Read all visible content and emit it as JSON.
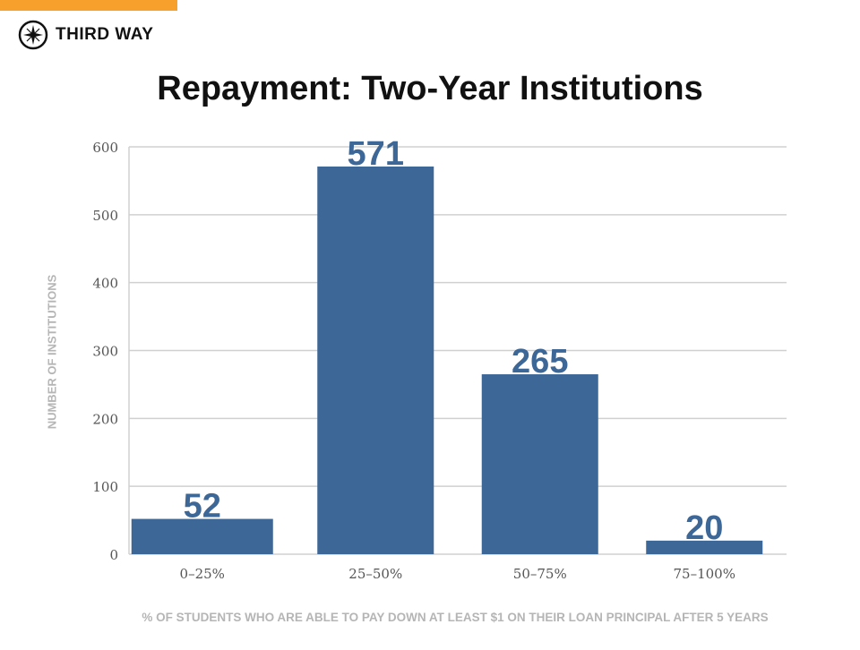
{
  "brand": {
    "name": "THIRD WAY",
    "accent": "#f7a12c"
  },
  "chart_data": {
    "type": "bar",
    "title": "Repayment: Two-Year Institutions",
    "xlabel": "% OF STUDENTS WHO ARE ABLE TO PAY DOWN AT LEAST $1 ON THEIR LOAN PRINCIPAL AFTER 5 YEARS",
    "ylabel": "NUMBER OF INSTITUTIONS",
    "categories": [
      "0–25%",
      "25–50%",
      "50–75%",
      "75–100%"
    ],
    "values": [
      52,
      571,
      265,
      20
    ],
    "data_labels": [
      "52",
      "571",
      "265",
      "20"
    ],
    "yticks": [
      0,
      100,
      200,
      300,
      400,
      500,
      600
    ],
    "ylim": [
      0,
      600
    ],
    "grid": true,
    "bar_color": "#3d6796"
  }
}
